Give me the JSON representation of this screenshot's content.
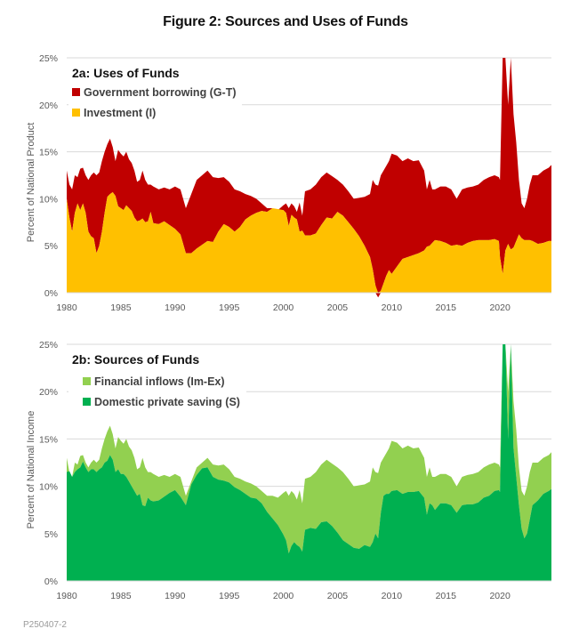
{
  "title": "Figure 2: Sources and Uses of Funds",
  "footer": "P250407-2",
  "chart_data": [
    {
      "type": "area",
      "stacked": true,
      "title": "2a: Uses of Funds",
      "xlabel": "",
      "ylabel": "Percent of National Product",
      "xlim": [
        1980,
        2024.75
      ],
      "ylim": [
        0,
        25
      ],
      "x_ticks": [
        "1980",
        "1985",
        "1990",
        "1995",
        "2000",
        "2005",
        "2010",
        "2015",
        "2020"
      ],
      "y_ticks": [
        "0%",
        "5%",
        "10%",
        "15%",
        "20%",
        "25%"
      ],
      "grid": true,
      "legend": "top-left",
      "x": [
        1980.0,
        1980.25,
        1980.5,
        1980.75,
        1981.0,
        1981.25,
        1981.5,
        1981.75,
        1982.0,
        1982.25,
        1982.5,
        1982.75,
        1983.0,
        1983.25,
        1983.5,
        1983.75,
        1984.0,
        1984.25,
        1984.5,
        1984.75,
        1985.0,
        1985.25,
        1985.5,
        1985.75,
        1986.0,
        1986.25,
        1986.5,
        1986.75,
        1987.0,
        1987.25,
        1987.5,
        1987.75,
        1988.0,
        1988.5,
        1989.0,
        1989.5,
        1990.0,
        1990.5,
        1991.0,
        1991.5,
        1992.0,
        1992.5,
        1993.0,
        1993.5,
        1994.0,
        1994.5,
        1995.0,
        1995.5,
        1996.0,
        1996.5,
        1997.0,
        1997.5,
        1998.0,
        1998.5,
        1999.0,
        1999.5,
        2000.0,
        2000.25,
        2000.5,
        2000.75,
        2001.0,
        2001.25,
        2001.5,
        2001.75,
        2002.0,
        2002.5,
        2003.0,
        2003.5,
        2004.0,
        2004.5,
        2005.0,
        2005.5,
        2006.0,
        2006.5,
        2007.0,
        2007.5,
        2008.0,
        2008.25,
        2008.5,
        2008.75,
        2009.0,
        2009.25,
        2009.5,
        2009.75,
        2010.0,
        2010.5,
        2011.0,
        2011.5,
        2012.0,
        2012.5,
        2013.0,
        2013.25,
        2013.5,
        2013.75,
        2014.0,
        2014.5,
        2015.0,
        2015.5,
        2016.0,
        2016.5,
        2017.0,
        2017.5,
        2018.0,
        2018.5,
        2019.0,
        2019.5,
        2019.9,
        2020.0,
        2020.25,
        2020.5,
        2020.75,
        2021.0,
        2021.25,
        2021.5,
        2021.75,
        2022.0,
        2022.25,
        2022.5,
        2022.75,
        2023.0,
        2023.5,
        2024.0,
        2024.5,
        2024.75
      ],
      "series": [
        {
          "name": "Investment (I)",
          "color": "#FFC000",
          "values": [
            10.0,
            8.0,
            6.5,
            8.5,
            9.5,
            8.8,
            9.5,
            8.5,
            6.5,
            6.0,
            5.8,
            4.2,
            5.0,
            6.5,
            8.5,
            10.2,
            10.5,
            10.7,
            10.3,
            9.2,
            9.0,
            8.8,
            9.3,
            9.0,
            8.7,
            8.0,
            7.6,
            7.7,
            7.9,
            7.5,
            7.6,
            8.6,
            7.4,
            7.3,
            7.6,
            7.2,
            6.8,
            6.2,
            4.2,
            4.2,
            4.7,
            5.1,
            5.5,
            5.4,
            6.5,
            7.3,
            7.0,
            6.5,
            7.0,
            7.8,
            8.2,
            8.5,
            8.7,
            8.6,
            9.0,
            8.9,
            8.8,
            8.5,
            7.1,
            8.3,
            8.0,
            7.8,
            6.5,
            6.6,
            6.1,
            6.1,
            6.3,
            7.2,
            8.0,
            7.9,
            8.6,
            8.2,
            7.5,
            6.8,
            6.0,
            5.0,
            3.8,
            2.5,
            0.8,
            -0.5,
            0.2,
            1.0,
            1.8,
            2.4,
            2.0,
            2.8,
            3.6,
            3.8,
            4.0,
            4.2,
            4.5,
            4.9,
            5.0,
            5.3,
            5.6,
            5.5,
            5.3,
            5.0,
            5.1,
            5.0,
            5.3,
            5.5,
            5.6,
            5.6,
            5.6,
            5.7,
            5.5,
            3.8,
            2.0,
            4.5,
            5.2,
            4.6,
            4.8,
            5.5,
            6.2,
            5.8,
            5.6,
            5.6,
            5.6,
            5.5,
            5.2,
            5.3,
            5.5,
            5.5,
            5.5,
            5.5
          ]
        },
        {
          "name": "Government borrowing (G-T)",
          "color": "#C00000",
          "values_total": [
            13.0,
            11.5,
            11.0,
            12.5,
            12.3,
            13.2,
            13.3,
            12.5,
            12.0,
            12.5,
            12.8,
            12.5,
            12.8,
            14.0,
            15.0,
            15.8,
            16.4,
            15.5,
            14.0,
            15.2,
            14.8,
            14.5,
            15.0,
            14.2,
            13.8,
            13.0,
            11.8,
            12.0,
            13.0,
            12.0,
            11.5,
            11.5,
            11.3,
            11.0,
            11.2,
            11.0,
            11.3,
            11.0,
            9.0,
            10.5,
            12.0,
            12.5,
            13.0,
            12.3,
            12.2,
            12.3,
            11.8,
            11.0,
            10.8,
            10.5,
            10.3,
            10.0,
            9.5,
            9.0,
            9.0,
            8.8,
            9.3,
            9.5,
            9.0,
            9.5,
            9.2,
            8.6,
            9.6,
            8.2,
            10.8,
            11.0,
            11.5,
            12.3,
            12.8,
            12.4,
            12.0,
            11.5,
            10.8,
            10.0,
            10.1,
            10.2,
            10.5,
            12.0,
            11.5,
            11.4,
            12.5,
            13.0,
            13.5,
            14.0,
            14.8,
            14.6,
            14.0,
            14.3,
            14.0,
            14.1,
            13.0,
            11.0,
            12.0,
            11.0,
            11.0,
            11.3,
            11.3,
            11.0,
            10.0,
            11.0,
            11.2,
            11.3,
            11.5,
            12.0,
            12.3,
            12.5,
            12.3,
            12.0,
            25.0,
            25.0,
            20.0,
            25.0,
            19.0,
            16.0,
            12.0,
            9.5,
            9.0,
            10.0,
            11.5,
            12.5,
            12.5,
            13.0,
            13.3,
            13.6
          ]
        }
      ]
    },
    {
      "type": "area",
      "stacked": true,
      "title": "2b: Sources of Funds",
      "xlabel": "",
      "ylabel": "Percent of National Income",
      "xlim": [
        1980,
        2024.75
      ],
      "ylim": [
        0,
        25
      ],
      "x_ticks": [
        "1980",
        "1985",
        "1990",
        "1995",
        "2000",
        "2005",
        "2010",
        "2015",
        "2020"
      ],
      "y_ticks": [
        "0%",
        "5%",
        "10%",
        "15%",
        "20%",
        "25%"
      ],
      "grid": true,
      "legend": "top-left",
      "x": [
        1980.0,
        1980.25,
        1980.5,
        1980.75,
        1981.0,
        1981.25,
        1981.5,
        1981.75,
        1982.0,
        1982.25,
        1982.5,
        1982.75,
        1983.0,
        1983.25,
        1983.5,
        1983.75,
        1984.0,
        1984.25,
        1984.5,
        1984.75,
        1985.0,
        1985.25,
        1985.5,
        1985.75,
        1986.0,
        1986.25,
        1986.5,
        1986.75,
        1987.0,
        1987.25,
        1987.5,
        1987.75,
        1988.0,
        1988.5,
        1989.0,
        1989.5,
        1990.0,
        1990.5,
        1991.0,
        1991.5,
        1992.0,
        1992.5,
        1993.0,
        1993.5,
        1994.0,
        1994.5,
        1995.0,
        1995.5,
        1996.0,
        1996.5,
        1997.0,
        1997.5,
        1998.0,
        1998.5,
        1999.0,
        1999.5,
        2000.0,
        2000.25,
        2000.5,
        2000.75,
        2001.0,
        2001.25,
        2001.5,
        2001.75,
        2002.0,
        2002.5,
        2003.0,
        2003.5,
        2004.0,
        2004.5,
        2005.0,
        2005.5,
        2006.0,
        2006.5,
        2007.0,
        2007.5,
        2008.0,
        2008.25,
        2008.5,
        2008.75,
        2009.0,
        2009.25,
        2009.5,
        2009.75,
        2010.0,
        2010.5,
        2011.0,
        2011.5,
        2012.0,
        2012.5,
        2013.0,
        2013.25,
        2013.5,
        2013.75,
        2014.0,
        2014.5,
        2015.0,
        2015.5,
        2016.0,
        2016.5,
        2017.0,
        2017.5,
        2018.0,
        2018.5,
        2019.0,
        2019.5,
        2019.9,
        2020.0,
        2020.25,
        2020.5,
        2020.75,
        2021.0,
        2021.25,
        2021.5,
        2021.75,
        2022.0,
        2022.25,
        2022.5,
        2022.75,
        2023.0,
        2023.5,
        2024.0,
        2024.5,
        2024.75
      ],
      "series": [
        {
          "name": "Domestic private saving (S)",
          "color": "#00B050",
          "values": [
            11.5,
            11.6,
            11.0,
            11.5,
            11.8,
            12.0,
            12.6,
            12.0,
            11.5,
            11.8,
            11.8,
            11.5,
            11.8,
            12.0,
            12.5,
            12.7,
            13.3,
            12.8,
            11.5,
            11.8,
            11.3,
            11.3,
            11.0,
            10.5,
            10.0,
            9.5,
            9.0,
            9.2,
            8.0,
            7.9,
            8.8,
            8.5,
            8.4,
            8.5,
            8.9,
            9.3,
            9.6,
            8.9,
            8.0,
            10.2,
            11.2,
            11.9,
            12.0,
            11.0,
            10.7,
            10.6,
            10.4,
            9.9,
            9.6,
            9.2,
            8.8,
            8.7,
            8.2,
            7.3,
            6.6,
            5.9,
            4.9,
            4.3,
            2.9,
            3.7,
            4.1,
            3.8,
            3.6,
            3.1,
            5.4,
            5.6,
            5.5,
            6.2,
            6.3,
            5.8,
            5.1,
            4.3,
            3.9,
            3.5,
            3.4,
            3.8,
            3.6,
            4.1,
            5.0,
            4.5,
            7.2,
            9.0,
            9.2,
            9.2,
            9.5,
            9.6,
            9.2,
            9.4,
            9.4,
            9.5,
            8.8,
            7.0,
            8.2,
            8.0,
            7.5,
            8.2,
            8.2,
            8.0,
            7.2,
            8.0,
            8.1,
            8.1,
            8.3,
            8.8,
            9.0,
            9.5,
            9.6,
            9.4,
            25.0,
            25.0,
            15.0,
            25.0,
            14.0,
            11.0,
            8.0,
            5.5,
            4.5,
            5.0,
            6.5,
            8.0,
            8.5,
            9.2,
            9.5,
            9.7
          ]
        },
        {
          "name": "Financial inflows (Im-Ex)",
          "color": "#92D050",
          "values_total": [
            13.0,
            11.5,
            11.0,
            12.5,
            12.3,
            13.2,
            13.3,
            12.5,
            12.0,
            12.5,
            12.8,
            12.5,
            12.8,
            14.0,
            15.0,
            15.8,
            16.4,
            15.5,
            14.0,
            15.2,
            14.8,
            14.5,
            15.0,
            14.2,
            13.8,
            13.0,
            11.8,
            12.0,
            13.0,
            12.0,
            11.5,
            11.5,
            11.3,
            11.0,
            11.2,
            11.0,
            11.3,
            11.0,
            9.0,
            10.5,
            12.0,
            12.5,
            13.0,
            12.3,
            12.2,
            12.3,
            11.8,
            11.0,
            10.8,
            10.5,
            10.3,
            10.0,
            9.5,
            9.0,
            9.0,
            8.8,
            9.3,
            9.5,
            9.0,
            9.5,
            9.2,
            8.6,
            9.6,
            8.2,
            10.8,
            11.0,
            11.5,
            12.3,
            12.8,
            12.4,
            12.0,
            11.5,
            10.8,
            10.0,
            10.1,
            10.2,
            10.5,
            12.0,
            11.5,
            11.4,
            12.5,
            13.0,
            13.5,
            14.0,
            14.8,
            14.6,
            14.0,
            14.3,
            14.0,
            14.1,
            13.0,
            11.0,
            12.0,
            11.0,
            11.0,
            11.3,
            11.3,
            11.0,
            10.0,
            11.0,
            11.2,
            11.3,
            11.5,
            12.0,
            12.3,
            12.5,
            12.3,
            12.0,
            25.0,
            25.0,
            20.0,
            25.0,
            19.0,
            16.0,
            12.0,
            9.5,
            9.0,
            10.0,
            11.5,
            12.5,
            12.5,
            13.0,
            13.3,
            13.6
          ]
        }
      ]
    }
  ]
}
